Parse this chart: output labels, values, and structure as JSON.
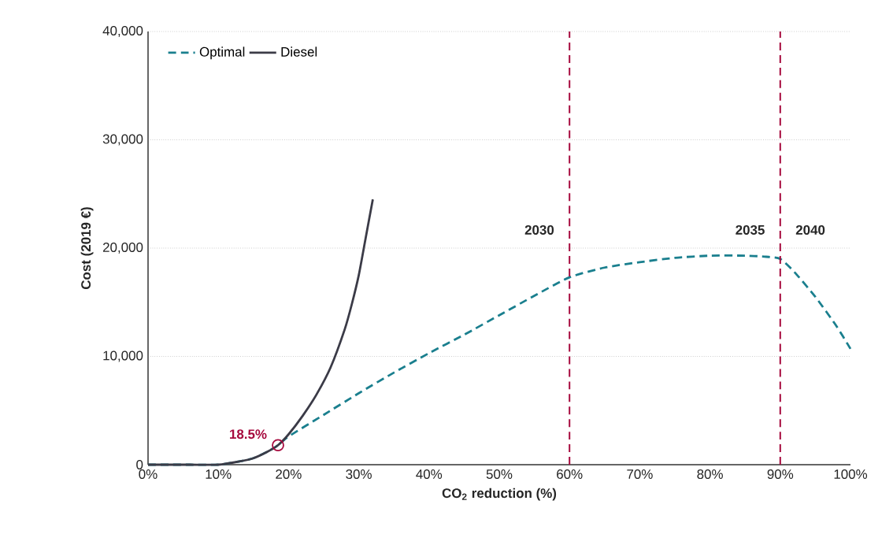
{
  "chart_data": {
    "type": "line",
    "xlabel": "CO$_{2}$ reduction (%)",
    "ylabel": "Cost (2019 €)",
    "xlim": [
      0,
      100
    ],
    "ylim": [
      0,
      40000
    ],
    "xticks": [
      {
        "value": 0,
        "label": "0%"
      },
      {
        "value": 10,
        "label": "10%"
      },
      {
        "value": 20,
        "label": "20%"
      },
      {
        "value": 30,
        "label": "30%"
      },
      {
        "value": 40,
        "label": "40%"
      },
      {
        "value": 50,
        "label": "50%"
      },
      {
        "value": 60,
        "label": "60%"
      },
      {
        "value": 70,
        "label": "70%"
      },
      {
        "value": 80,
        "label": "80%"
      },
      {
        "value": 90,
        "label": "90%"
      },
      {
        "value": 100,
        "label": "100%"
      }
    ],
    "yticks": [
      {
        "value": 0,
        "label": "0"
      },
      {
        "value": 10000,
        "label": "10,000"
      },
      {
        "value": 20000,
        "label": "20,000"
      },
      {
        "value": 30000,
        "label": "30,000"
      },
      {
        "value": 40000,
        "label": "40,000"
      }
    ],
    "grid": "y",
    "legend": "top left",
    "series": [
      {
        "name": "Optimal",
        "color": "#1a7f8e",
        "line_style": "dashed",
        "x": [
          0,
          3,
          6,
          10,
          13,
          15,
          17,
          18.5,
          20,
          25,
          30,
          35,
          40,
          45,
          50,
          55,
          60,
          65,
          70,
          75,
          80,
          85,
          88,
          90,
          92,
          95,
          98,
          100
        ],
        "values": [
          0,
          0,
          0,
          0,
          300,
          600,
          1200,
          1800,
          2600,
          4600,
          6600,
          8500,
          10300,
          12000,
          13800,
          15600,
          17300,
          18200,
          18700,
          19100,
          19300,
          19300,
          19200,
          19000,
          17800,
          15500,
          12800,
          10700
        ]
      },
      {
        "name": "Diesel",
        "color": "#3b3b47",
        "line_style": "solid",
        "x": [
          0,
          3,
          6,
          10,
          13,
          15,
          17,
          18.5,
          20,
          22,
          24,
          26,
          28,
          29,
          30,
          31,
          32
        ],
        "values": [
          0,
          0,
          0,
          0,
          300,
          600,
          1200,
          1800,
          2800,
          4500,
          6500,
          9000,
          12500,
          14800,
          17500,
          21000,
          24500
        ]
      },
      {
        "type": "scatter",
        "color": "#a6093d",
        "marker": "circle",
        "x": [
          18.5
        ],
        "values": [
          1800
        ]
      }
    ],
    "ref_lines": [
      {
        "axis": "x",
        "value": 60,
        "color": "#a6093d",
        "line_style": "dashed"
      },
      {
        "axis": "x",
        "value": 90,
        "color": "#a6093d",
        "line_style": "dashed"
      }
    ],
    "annotations": [
      {
        "text": "18.5%",
        "x": 18.5,
        "y": 1800
      },
      "2030",
      "2035",
      "2040"
    ]
  }
}
